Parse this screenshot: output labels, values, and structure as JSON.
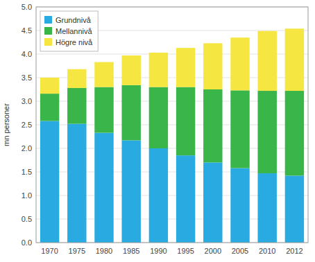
{
  "chart_data": {
    "type": "bar",
    "stacked": true,
    "categories": [
      "1970",
      "1975",
      "1980",
      "1985",
      "1990",
      "1995",
      "2000",
      "2005",
      "2010",
      "2012"
    ],
    "series": [
      {
        "name": "Grundnivå",
        "color": "#29ABE2",
        "values": [
          2.58,
          2.52,
          2.33,
          2.17,
          2.0,
          1.85,
          1.7,
          1.58,
          1.47,
          1.42
        ]
      },
      {
        "name": "Mellannivå",
        "color": "#39B54A",
        "values": [
          0.58,
          0.76,
          0.97,
          1.17,
          1.3,
          1.45,
          1.55,
          1.65,
          1.75,
          1.8
        ]
      },
      {
        "name": "Högre nivå",
        "color": "#F5E642",
        "values": [
          0.34,
          0.4,
          0.53,
          0.63,
          0.73,
          0.83,
          0.98,
          1.12,
          1.27,
          1.32
        ]
      }
    ],
    "y_label": "mn personer",
    "ylim": [
      0,
      5.0
    ],
    "yticks": [
      {
        "value": 0.0,
        "label": "0.0"
      },
      0.5,
      {
        "value": 1.0,
        "label": "1.0"
      },
      1.5,
      {
        "value": 2.0,
        "label": "2.0"
      },
      2.5,
      {
        "value": 3.0,
        "label": "3.0"
      },
      3.5,
      {
        "value": 4.0,
        "label": "4.0"
      },
      4.5,
      {
        "value": 5.0,
        "label": "5.0"
      }
    ],
    "grid": true,
    "legend": "upper left"
  }
}
